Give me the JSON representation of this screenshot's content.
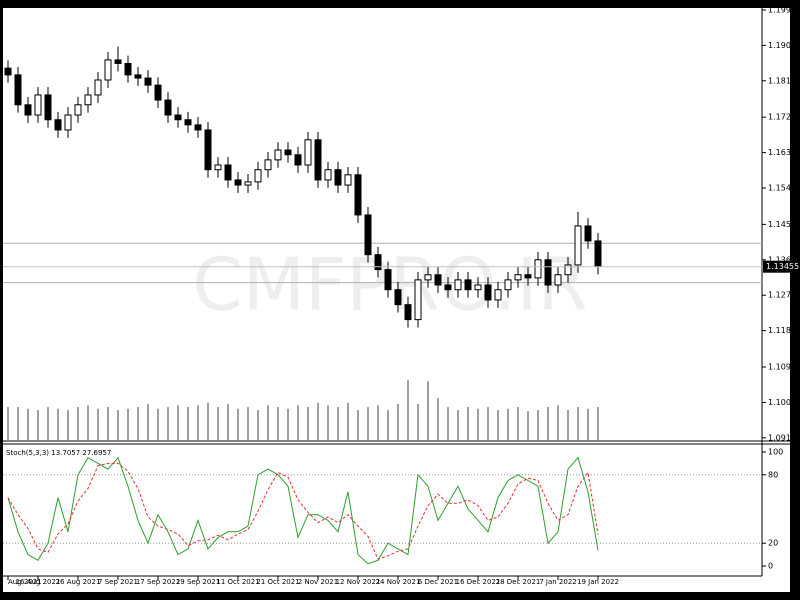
{
  "chart_data": [
    {
      "type": "candlestick",
      "watermark": "CMFPRO.IR",
      "categories": [
        "Aug 2021",
        null,
        null,
        "16 Aug 2021",
        null,
        null,
        null,
        "26 Aug 2021",
        null,
        null,
        null,
        "7 Sep 2021",
        null,
        null,
        null,
        "17 Sep 2021",
        null,
        null,
        null,
        "29 Sep 2021",
        null,
        null,
        null,
        "11 Oct 2021",
        null,
        null,
        null,
        "21 Oct 2021",
        null,
        null,
        null,
        "2 Nov 2021",
        null,
        null,
        null,
        "12 Nov 2021",
        null,
        null,
        null,
        "24 Nov 2021",
        null,
        null,
        null,
        "6 Dec 2021",
        null,
        null,
        null,
        "16 Dec 2021",
        null,
        null,
        null,
        "28 Dec 2021",
        null,
        null,
        null,
        "7 Jan 2022",
        null,
        null,
        null,
        "19 Jan 2022"
      ],
      "open": [
        1.185,
        1.1833,
        1.1757,
        1.1731,
        1.1782,
        1.1719,
        1.1693,
        1.1731,
        1.1757,
        1.1782,
        1.182,
        1.1871,
        1.1862,
        1.1833,
        1.1825,
        1.1807,
        1.1769,
        1.1731,
        1.1719,
        1.1706,
        1.1693,
        1.1592,
        1.1604,
        1.1566,
        1.1553,
        1.1561,
        1.1592,
        1.1617,
        1.1642,
        1.163,
        1.1604,
        1.1668,
        1.1566,
        1.1592,
        1.1553,
        1.1579,
        1.1477,
        1.1376,
        1.1338,
        1.1287,
        1.1249,
        1.1211,
        1.1312,
        1.1325,
        1.1299,
        1.1287,
        1.1312,
        1.1287,
        1.1299,
        1.1261,
        1.1287,
        1.1312,
        1.1325,
        1.1317,
        1.1363,
        1.1299,
        1.1325,
        1.135,
        1.1449,
        1.1411
      ],
      "high": [
        1.187,
        1.1853,
        1.1777,
        1.1802,
        1.1802,
        1.1739,
        1.1751,
        1.1777,
        1.1802,
        1.184,
        1.1891,
        1.1905,
        1.1882,
        1.1853,
        1.1845,
        1.1827,
        1.1789,
        1.1751,
        1.1739,
        1.1726,
        1.1713,
        1.1624,
        1.1624,
        1.1586,
        1.1581,
        1.1612,
        1.1637,
        1.1662,
        1.1662,
        1.165,
        1.1688,
        1.1688,
        1.1612,
        1.1612,
        1.1599,
        1.1599,
        1.1497,
        1.1396,
        1.1358,
        1.1307,
        1.1269,
        1.1332,
        1.1345,
        1.1345,
        1.1319,
        1.1332,
        1.1332,
        1.1319,
        1.1319,
        1.1307,
        1.1332,
        1.1345,
        1.1345,
        1.1383,
        1.1383,
        1.1345,
        1.137,
        1.1485,
        1.1469,
        1.1431
      ],
      "low": [
        1.1813,
        1.1737,
        1.1711,
        1.1711,
        1.1699,
        1.1673,
        1.1673,
        1.1711,
        1.1737,
        1.1762,
        1.18,
        1.1842,
        1.1813,
        1.1805,
        1.1787,
        1.1749,
        1.1711,
        1.1699,
        1.1686,
        1.1673,
        1.1572,
        1.1572,
        1.1546,
        1.1533,
        1.1533,
        1.1541,
        1.1572,
        1.1597,
        1.161,
        1.1584,
        1.1584,
        1.1546,
        1.1546,
        1.1533,
        1.1533,
        1.1457,
        1.1356,
        1.1318,
        1.1267,
        1.1229,
        1.1191,
        1.1191,
        1.1292,
        1.1279,
        1.1267,
        1.1267,
        1.1267,
        1.1267,
        1.1241,
        1.1241,
        1.1267,
        1.1292,
        1.1297,
        1.1297,
        1.1279,
        1.1279,
        1.1305,
        1.133,
        1.1391,
        1.1326
      ],
      "close": [
        1.1833,
        1.1757,
        1.1731,
        1.1782,
        1.1719,
        1.1693,
        1.1731,
        1.1757,
        1.1782,
        1.182,
        1.1871,
        1.1862,
        1.1833,
        1.1825,
        1.1807,
        1.1769,
        1.1731,
        1.1719,
        1.1706,
        1.1693,
        1.1592,
        1.1604,
        1.1566,
        1.1553,
        1.1561,
        1.1592,
        1.1617,
        1.1642,
        1.163,
        1.1604,
        1.1668,
        1.1566,
        1.1592,
        1.1553,
        1.1579,
        1.1477,
        1.1376,
        1.1338,
        1.1287,
        1.1249,
        1.1211,
        1.1312,
        1.1325,
        1.1299,
        1.1287,
        1.1312,
        1.1287,
        1.1299,
        1.1261,
        1.1287,
        1.1312,
        1.1325,
        1.1317,
        1.1363,
        1.1299,
        1.1325,
        1.135,
        1.1449,
        1.1411,
        1.1346
      ],
      "up_color": "#ffffff",
      "down_color": "#000000",
      "ylim": [
        1.0905,
        1.2003
      ],
      "yticks": [
        {
          "value": 1.1998,
          "label": "1.19980"
        },
        {
          "value": 1.1908,
          "label": "1.19080"
        },
        {
          "value": 1.1818,
          "label": "1.18180"
        },
        {
          "value": 1.17255,
          "label": "1.17255"
        },
        {
          "value": 1.16355,
          "label": "1.16355"
        },
        {
          "value": 1.15455,
          "label": "1.15455"
        },
        {
          "value": 1.1453,
          "label": "1.14530"
        },
        {
          "value": 1.1363,
          "label": "1.13630"
        },
        {
          "value": 1.1273,
          "label": "1.12730"
        },
        {
          "value": 1.1183,
          "label": "1.11830"
        },
        {
          "value": 1.10905,
          "label": "1.10905"
        },
        {
          "value": 1.10005,
          "label": "1.10005"
        },
        {
          "value": 1.09105,
          "label": "1.09105"
        }
      ],
      "current_price": {
        "value": 1.13455,
        "label": "1.13455"
      },
      "hlines": [
        1.1405,
        1.1305
      ]
    },
    {
      "type": "bar",
      "color": "#808080",
      "ylim": [
        0,
        100
      ],
      "values": [
        55,
        55,
        52,
        50,
        55,
        52,
        50,
        55,
        58,
        52,
        55,
        50,
        52,
        55,
        60,
        52,
        55,
        58,
        55,
        58,
        62,
        55,
        60,
        52,
        55,
        50,
        58,
        55,
        52,
        58,
        55,
        62,
        58,
        55,
        62,
        50,
        55,
        58,
        50,
        60,
        100,
        60,
        98,
        70,
        55,
        50,
        55,
        52,
        55,
        50,
        52,
        55,
        48,
        50,
        55,
        58,
        50,
        55,
        52,
        55
      ]
    },
    {
      "type": "line",
      "title": "Stoch(5,3,3) 13.7057 27.6957",
      "ylim": [
        0,
        100
      ],
      "yticks": [
        0,
        20,
        80,
        100
      ],
      "levels": [
        80,
        20
      ],
      "series": [
        {
          "color": "#2e9e2e",
          "dash": false,
          "values": [
            60,
            30,
            10,
            5,
            20,
            60,
            30,
            80,
            95,
            90,
            85,
            95,
            70,
            40,
            20,
            45,
            30,
            10,
            15,
            40,
            15,
            25,
            30,
            30,
            35,
            80,
            85,
            80,
            70,
            25,
            45,
            45,
            40,
            30,
            65,
            10,
            2,
            5,
            20,
            15,
            10,
            80,
            70,
            40,
            55,
            70,
            50,
            40,
            30,
            60,
            75,
            80,
            75,
            70,
            20,
            30,
            85,
            95,
            65,
            13.7057
          ]
        },
        {
          "color": "#e03030",
          "dash": true,
          "values": [
            60,
            45,
            33,
            15,
            12,
            28,
            37,
            57,
            68,
            88,
            90,
            90,
            83,
            68,
            43,
            35,
            32,
            28,
            18,
            22,
            23,
            27,
            23,
            28,
            32,
            48,
            67,
            82,
            78,
            58,
            47,
            38,
            43,
            38,
            45,
            35,
            26,
            6,
            9,
            13,
            15,
            35,
            53,
            63,
            55,
            55,
            58,
            53,
            40,
            43,
            55,
            72,
            77,
            75,
            55,
            40,
            45,
            70,
            82,
            27.6957
          ]
        }
      ]
    }
  ]
}
